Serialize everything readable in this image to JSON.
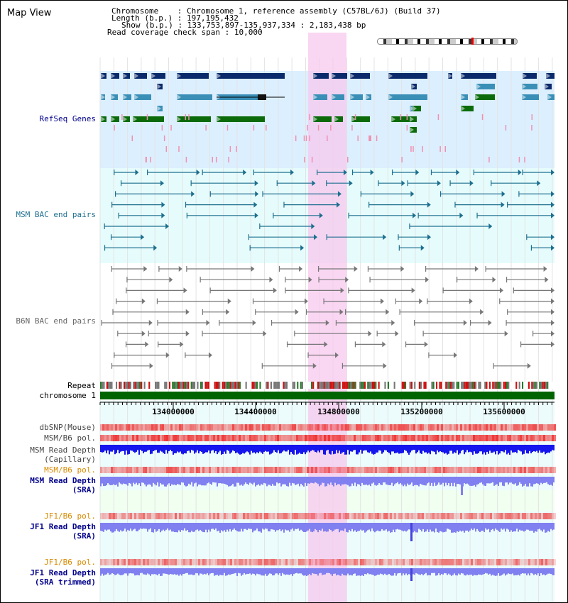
{
  "page_title": "Map View",
  "info": {
    "chromosome_label": "Chromosome",
    "chromosome_value": "Chromosome 1, reference assembly (C57BL/6J) (Build 37)",
    "length_label": "Length (b.p.)",
    "length_value": "197,195,432",
    "show_label": "Show (b.p.)",
    "show_value": "133,753,897-135,937,334 : 2,183,438 bp",
    "coverage_label": "Read coverage check span",
    "coverage_value": "10,000"
  },
  "tracks": {
    "refseq": "RefSeq Genes",
    "msm_bac": "MSM BAC end pairs",
    "b6n_bac": "B6N BAC end pairs",
    "repeat": "Repeat",
    "chromosome": "chromosome 1",
    "dbsnp": "dbSNP(Mouse)",
    "msm_b6_pol": "MSM/B6 pol.",
    "msm_depth_cap_1": "MSM Read Depth",
    "msm_depth_cap_2": "(Capillary)",
    "msm_b6_pol_2": "MSM/B6 pol.",
    "msm_depth_sra_1": "MSM Read Depth",
    "msm_depth_sra_2": "(SRA)",
    "jf1_b6_pol": "JF1/B6 pol.",
    "jf1_depth_sra_1": "JF1 Read Depth",
    "jf1_depth_sra_2": "(SRA)",
    "jf1_b6_pol_2": "JF1/B6 pol.",
    "jf1_depth_trim_1": "JF1 Read Depth",
    "jf1_depth_trim_2": "(SRA trimmed)"
  },
  "axis_ticks": [
    "134000000",
    "134400000",
    "134800000",
    "135200000",
    "135600000"
  ],
  "colors": {
    "refseq_dark": "#0a2a6b",
    "refseq_mid": "#3a8fb7",
    "refseq_green": "#0b6b0b",
    "msm_bac": "#1d6f8f",
    "b6n_bac": "#777777",
    "highlight": "#f7c8ee",
    "depth_blue": "#1515ee",
    "depth_light": "#8080f0",
    "pol_red": "#ee3333"
  }
}
